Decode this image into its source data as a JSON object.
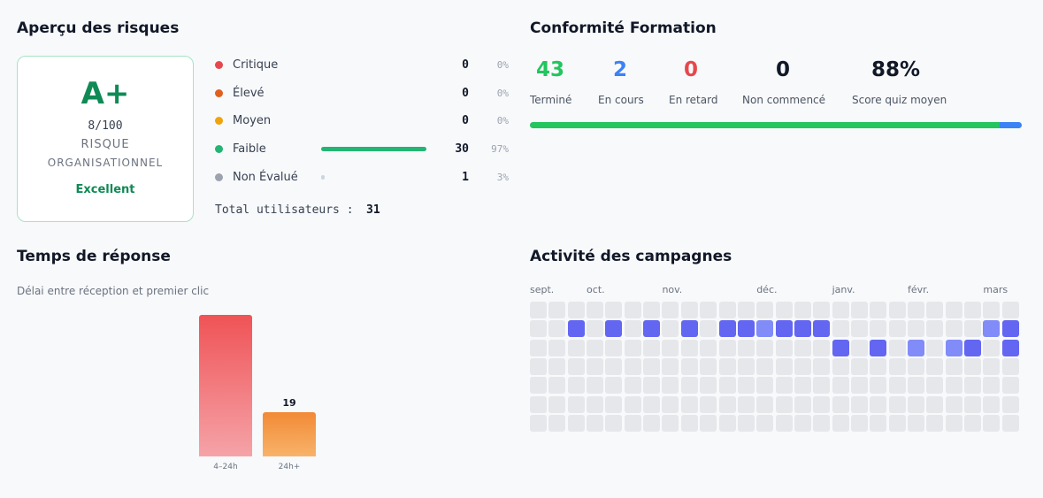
{
  "risk": {
    "title": "Aperçu des risques",
    "grade": "A+",
    "score": "8/100",
    "label_line1": "RISQUE",
    "label_line2": "ORGANISATIONNEL",
    "rating": "Excellent",
    "rows": [
      {
        "name": "Critique",
        "color": "#e5484d",
        "count": 0,
        "percent": "0%"
      },
      {
        "name": "Élevé",
        "color": "#e0601e",
        "count": 0,
        "percent": "0%"
      },
      {
        "name": "Moyen",
        "color": "#f0a30a",
        "count": 0,
        "percent": "0%"
      },
      {
        "name": "Faible",
        "color": "#22b573",
        "count": 30,
        "percent": "97%"
      },
      {
        "name": "Non Évalué",
        "color": "#9ca3af",
        "count": 1,
        "percent": "3%"
      }
    ],
    "total_label": "Total utilisateurs :",
    "total": 31
  },
  "training": {
    "title": "Conformité Formation",
    "stats": [
      {
        "value": 43,
        "label": "Terminé",
        "color": "#22c55e"
      },
      {
        "value": 2,
        "label": "En cours",
        "color": "#3b82f6"
      },
      {
        "value": 0,
        "label": "En retard",
        "color": "#e5484d"
      },
      {
        "value": 0,
        "label": "Non commencé",
        "color": "#111827"
      },
      {
        "value": "88%",
        "label": "Score quiz moyen",
        "color": "#111827"
      }
    ]
  },
  "response": {
    "title": "Temps de réponse",
    "subtitle": "Délai entre réception et premier clic",
    "categories": [
      "4–24h",
      "24h+"
    ],
    "values": [
      61,
      19
    ],
    "value_labels": [
      null,
      "19"
    ]
  },
  "campaigns": {
    "title": "Activité des campagnes",
    "column_labels": [
      "sept.",
      null,
      null,
      "oct.",
      null,
      null,
      null,
      "nov.",
      null,
      null,
      null,
      null,
      "déc.",
      null,
      null,
      null,
      "janv.",
      null,
      null,
      null,
      "févr.",
      null,
      null,
      null,
      "mars",
      null,
      null
    ],
    "grid": [
      [
        0,
        0,
        0,
        0,
        0,
        0,
        0,
        0,
        0,
        0,
        0,
        0,
        0,
        0,
        0,
        0,
        0,
        0,
        0,
        0,
        0,
        0,
        0,
        0,
        0,
        0
      ],
      [
        0,
        0,
        2,
        0,
        2,
        0,
        2,
        0,
        2,
        0,
        2,
        2,
        1,
        2,
        2,
        2,
        0,
        0,
        0,
        0,
        0,
        0,
        0,
        0,
        1,
        2
      ],
      [
        0,
        0,
        0,
        0,
        0,
        0,
        0,
        0,
        0,
        0,
        0,
        0,
        0,
        0,
        0,
        0,
        2,
        0,
        2,
        0,
        1,
        0,
        1,
        2,
        0,
        2
      ],
      [
        0,
        0,
        0,
        0,
        0,
        0,
        0,
        0,
        0,
        0,
        0,
        0,
        0,
        0,
        0,
        0,
        0,
        0,
        0,
        0,
        0,
        0,
        0,
        0,
        0,
        0
      ],
      [
        0,
        0,
        0,
        0,
        0,
        0,
        0,
        0,
        0,
        0,
        0,
        0,
        0,
        0,
        0,
        0,
        0,
        0,
        0,
        0,
        0,
        0,
        0,
        0,
        0,
        0
      ],
      [
        0,
        0,
        0,
        0,
        0,
        0,
        0,
        0,
        0,
        0,
        0,
        0,
        0,
        0,
        0,
        0,
        0,
        0,
        0,
        0,
        0,
        0,
        0,
        0,
        0,
        0
      ],
      [
        0,
        0,
        0,
        0,
        0,
        0,
        0,
        0,
        0,
        0,
        0,
        0,
        0,
        0,
        0,
        0,
        0,
        0,
        0,
        0,
        0,
        0,
        0,
        0,
        0,
        0
      ]
    ]
  }
}
